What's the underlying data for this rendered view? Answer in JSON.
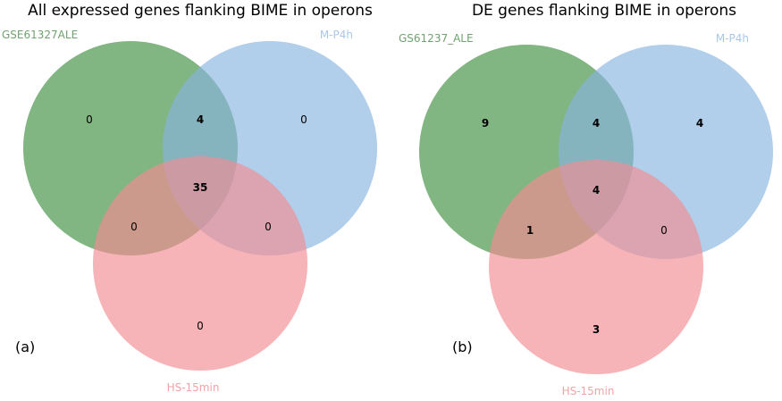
{
  "colors": {
    "set_a": "#3e8d3e",
    "set_b": "#87b4e0",
    "set_c": "#f38c92",
    "label_a": "#6fa36f",
    "label_b": "#a9c8e8",
    "label_c": "#f0a2a6"
  },
  "panels": [
    {
      "panel_label": "(a)",
      "title": "All expressed genes flanking BIME in operons",
      "sets": [
        "GSE61327ALE",
        "M-P4h",
        "HS-15min"
      ],
      "regions": {
        "a_only": "0",
        "b_only": "0",
        "c_only": "0",
        "ab": "4",
        "ac": "0",
        "bc": "0",
        "abc": "35"
      },
      "bold_regions": [
        "ab",
        "abc"
      ]
    },
    {
      "panel_label": "(b)",
      "title": "DE genes flanking BIME in operons",
      "sets": [
        "GS61237_ALE",
        "M-P4h",
        "HS-15min"
      ],
      "regions": {
        "a_only": "9",
        "b_only": "4",
        "c_only": "3",
        "ab": "4",
        "ac": "1",
        "bc": "0",
        "abc": "4"
      },
      "bold_regions": [
        "a_only",
        "b_only",
        "c_only",
        "ab",
        "ac",
        "abc"
      ]
    }
  ]
}
